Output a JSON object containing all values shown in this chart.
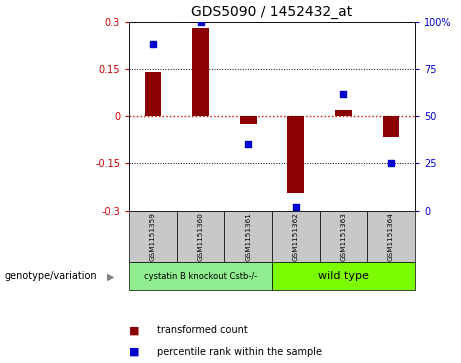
{
  "title": "GDS5090 / 1452432_at",
  "samples": [
    "GSM1151359",
    "GSM1151360",
    "GSM1151361",
    "GSM1151362",
    "GSM1151363",
    "GSM1151364"
  ],
  "red_values": [
    0.14,
    0.28,
    -0.025,
    -0.245,
    0.02,
    -0.065
  ],
  "blue_values": [
    88,
    100,
    35,
    2,
    62,
    25
  ],
  "ylim_left": [
    -0.3,
    0.3
  ],
  "ylim_right": [
    0,
    100
  ],
  "yticks_left": [
    -0.3,
    -0.15,
    0,
    0.15,
    0.3
  ],
  "yticks_right": [
    0,
    25,
    50,
    75,
    100
  ],
  "ytick_labels_right": [
    "0",
    "25",
    "50",
    "75",
    "100%"
  ],
  "bar_color": "#8B0000",
  "dot_color": "#0000CD",
  "hline_color": "#CC0000",
  "grid_color": "#000000",
  "group1_label": "cystatin B knockout Cstb-/-",
  "group2_label": "wild type",
  "group1_color": "#90EE90",
  "group2_color": "#7CFC00",
  "group_row_label": "genotype/variation",
  "legend_bar_label": "transformed count",
  "legend_dot_label": "percentile rank within the sample",
  "bar_width": 0.35,
  "bg_color": "#FFFFFF",
  "sample_bg_color": "#C8C8C8",
  "plot_bg_color": "#FFFFFF"
}
